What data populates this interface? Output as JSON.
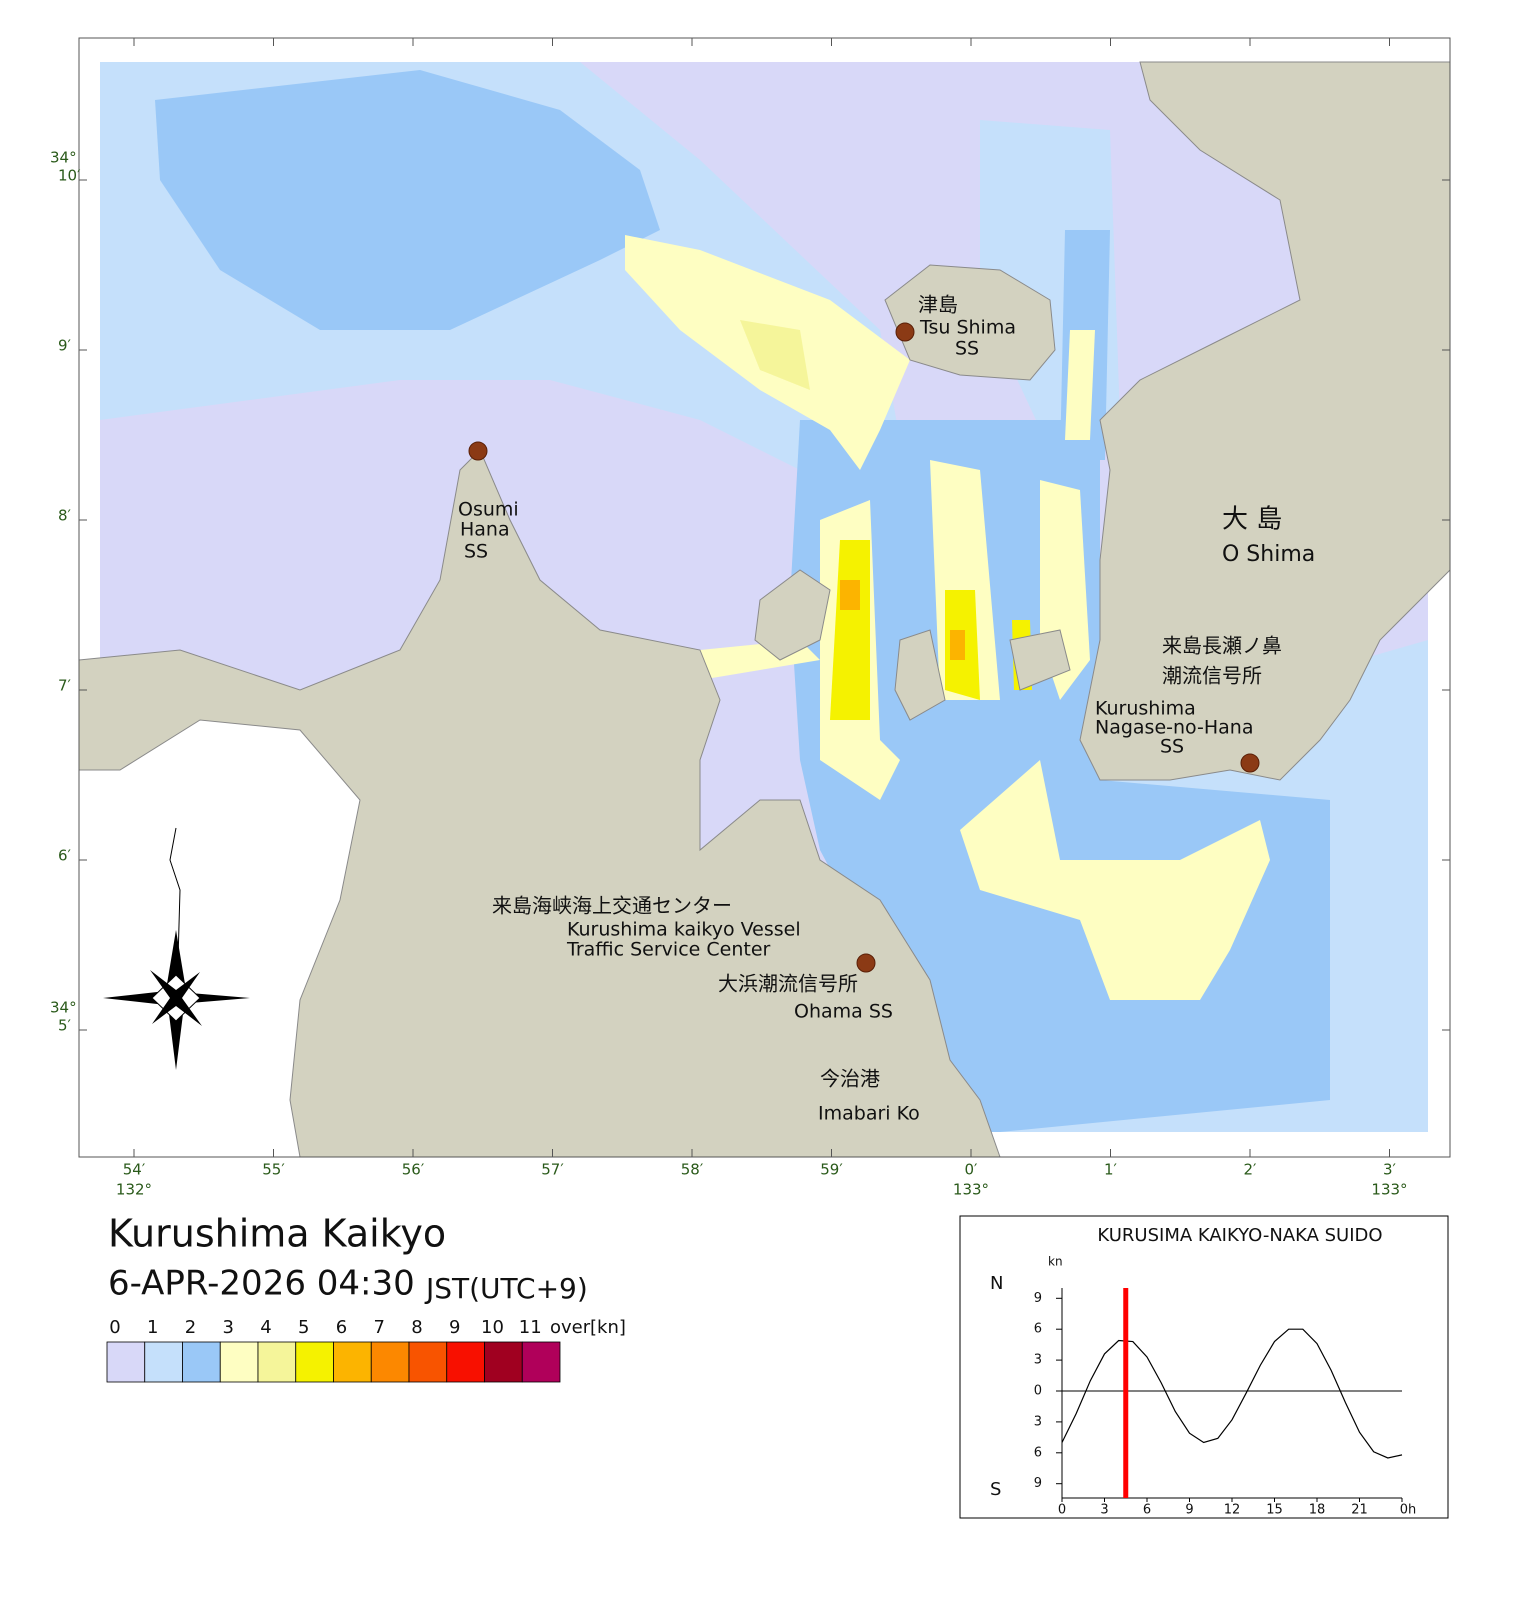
{
  "map": {
    "lat_labels": [
      {
        "deg": "34°",
        "min": "10′"
      },
      {
        "min": "9′"
      },
      {
        "min": "8′"
      },
      {
        "min": "7′"
      },
      {
        "min": "6′"
      },
      {
        "deg": "34°",
        "min": "5′"
      }
    ],
    "lon_labels": [
      {
        "min": "54′",
        "deg": "132°"
      },
      {
        "min": "55′"
      },
      {
        "min": "56′"
      },
      {
        "min": "57′"
      },
      {
        "min": "58′"
      },
      {
        "min": "59′"
      },
      {
        "min": "0′",
        "deg": "133°"
      },
      {
        "min": "1′"
      },
      {
        "min": "2′"
      },
      {
        "min": "3′",
        "deg": "133°"
      }
    ],
    "places": {
      "tsushima": {
        "ja": "津島",
        "en": "Tsu Shima",
        "sub": "SS"
      },
      "osumi": {
        "en1": "Osumi",
        "en2": "Hana",
        "sub": "SS"
      },
      "oshima": {
        "ja": "大 島",
        "en": "O Shima"
      },
      "nagase": {
        "ja1": "来島長瀬ノ鼻",
        "ja2": "潮流信号所",
        "en1": "Kurushima",
        "en2": "Nagase-no-Hana",
        "sub": "SS"
      },
      "center": {
        "ja": "来島海峡海上交通センター",
        "en1": "Kurushima kaikyo Vessel",
        "en2": "Traffic Service Center"
      },
      "ohama": {
        "ja": "大浜潮流信号所",
        "en": "Ohama SS"
      },
      "imabari": {
        "ja": "今治港",
        "en": "Imabari Ko"
      }
    }
  },
  "title": "Kurushima Kaikyo",
  "datetime": "6-APR-2026 04:30",
  "timezone": "JST(UTC+9)",
  "colorbar": {
    "ticks": [
      0,
      1,
      2,
      3,
      4,
      5,
      6,
      7,
      8,
      9,
      10,
      11
    ],
    "over_label": "over",
    "unit": "[kn]",
    "colors": [
      "#d8d8f8",
      "#c5e0fb",
      "#9ac8f7",
      "#fefec2",
      "#f5f59a",
      "#f5f200",
      "#fcb400",
      "#fc8800",
      "#f85400",
      "#f81000",
      "#a00020",
      "#b0005a"
    ]
  },
  "chart_data": {
    "type": "line",
    "title": "KURUSIMA KAIKYO-NAKA SUIDO",
    "y_unit": "kn",
    "north_label": "N",
    "south_label": "S",
    "x": [
      0,
      1,
      2,
      3,
      4,
      5,
      6,
      7,
      8,
      9,
      10,
      11,
      12,
      13,
      14,
      15,
      16,
      17,
      18,
      19,
      20,
      21,
      22,
      23,
      24
    ],
    "series": [
      {
        "color": "#000000",
        "values": [
          -5,
          -2.2,
          1,
          3.6,
          4.9,
          4.8,
          3.3,
          0.8,
          -2,
          -4.1,
          -5,
          -4.6,
          -2.8,
          -0.2,
          2.5,
          4.8,
          6,
          6,
          4.6,
          2,
          -1.1,
          -4,
          -5.9,
          -6.5,
          -6.2
        ]
      }
    ],
    "xlim": [
      0,
      24
    ],
    "ylim": [
      -10,
      10
    ],
    "xticks": [
      0,
      3,
      6,
      9,
      12,
      15,
      18,
      21,
      {
        "value": 24,
        "label": "0h"
      }
    ],
    "yticks": [
      9,
      6,
      3,
      0,
      {
        "value": -3,
        "label": "3"
      },
      {
        "value": -6,
        "label": "6"
      },
      {
        "value": -9,
        "label": "9"
      }
    ],
    "marker_x": 4.5,
    "marker_color": "#ff0000"
  }
}
